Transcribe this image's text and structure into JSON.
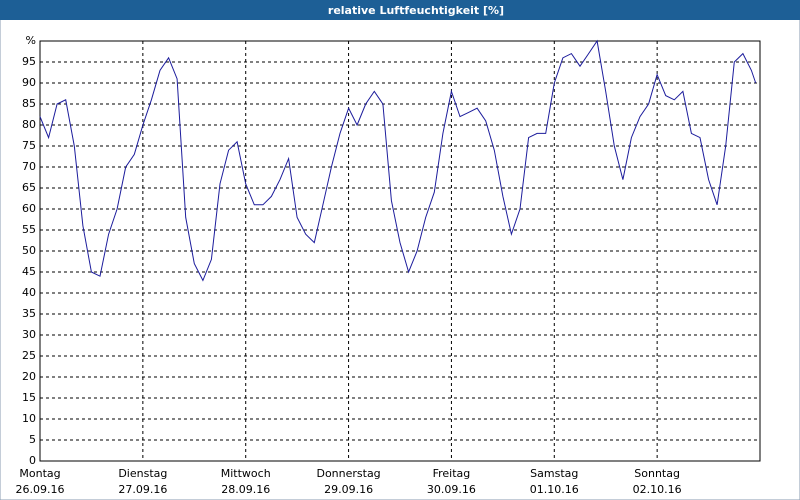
{
  "chart_data": {
    "type": "line",
    "title": "relative Luftfeuchtigkeit [%]",
    "x": [
      0,
      2,
      4,
      6,
      8,
      10,
      12,
      14,
      16,
      18,
      20,
      22,
      24,
      26,
      28,
      30,
      32,
      34,
      36,
      38,
      40,
      42,
      44,
      46,
      48,
      50,
      52,
      54,
      56,
      58,
      60,
      62,
      64,
      66,
      68,
      70,
      72,
      74,
      76,
      78,
      80,
      82,
      84,
      86,
      88,
      90,
      92,
      94,
      96,
      98,
      100,
      102,
      104,
      106,
      108,
      110,
      112,
      114,
      116,
      118,
      120,
      122,
      124,
      126,
      128,
      130,
      132,
      134,
      136,
      138,
      140,
      142,
      144,
      146,
      148,
      150,
      152,
      154,
      156,
      158,
      160,
      162,
      164,
      166,
      167
    ],
    "series": [
      {
        "color": "#1c1c9c",
        "values": [
          82,
          77,
          85,
          86,
          75,
          56,
          45,
          44,
          54,
          60,
          70,
          73,
          80,
          86,
          93,
          96,
          91,
          58,
          47,
          43,
          48,
          66,
          74,
          76,
          66,
          61,
          61,
          63,
          67,
          72,
          58,
          54,
          52,
          61,
          70,
          78,
          84,
          80,
          85,
          88,
          85,
          62,
          52,
          45,
          50,
          58,
          64,
          78,
          88,
          82,
          83,
          84,
          81,
          74,
          63,
          54,
          60,
          77,
          78,
          78,
          90,
          96,
          97,
          94,
          97,
          100,
          88,
          75,
          67,
          77,
          82,
          85,
          92,
          87,
          86,
          88,
          78,
          77,
          67,
          61,
          75,
          95,
          97,
          93,
          90
        ]
      }
    ],
    "xlim": [
      0,
      168
    ],
    "xticks": [
      {
        "value": 0,
        "label": [
          "Montag",
          "26.09.16"
        ]
      },
      {
        "value": 24,
        "label": [
          "Dienstag",
          "27.09.16"
        ]
      },
      {
        "value": 48,
        "label": [
          "Mittwoch",
          "28.09.16"
        ]
      },
      {
        "value": 72,
        "label": [
          "Donnerstag",
          "29.09.16"
        ]
      },
      {
        "value": 96,
        "label": [
          "Freitag",
          "30.09.16"
        ]
      },
      {
        "value": 120,
        "label": [
          "Samstag",
          "01.10.16"
        ]
      },
      {
        "value": 144,
        "label": [
          "Sonntag",
          "02.10.16"
        ]
      }
    ],
    "ylim": [
      0,
      100
    ],
    "yticks": [
      0,
      5,
      10,
      15,
      20,
      25,
      30,
      35,
      40,
      45,
      50,
      55,
      60,
      65,
      70,
      75,
      80,
      85,
      90,
      95,
      {
        "value": 100,
        "label": "%"
      }
    ],
    "grid": true
  }
}
